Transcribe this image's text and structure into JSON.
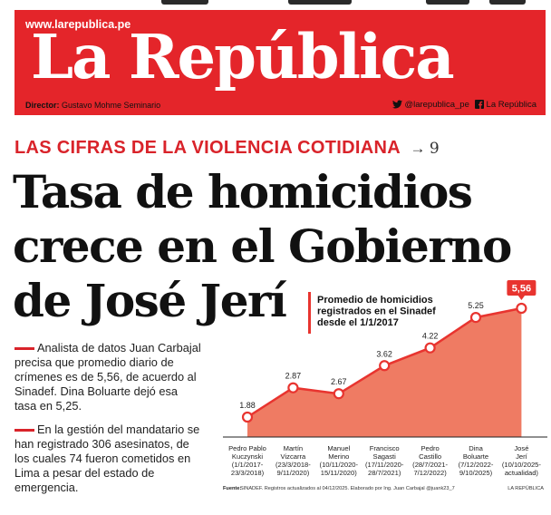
{
  "masthead": {
    "url": "www.larepublica.pe",
    "logo": "La República",
    "director_label": "Director:",
    "director_name": "Gustavo Mohme Seminario",
    "twitter": "@larepublica_pe",
    "facebook": "La República"
  },
  "kicker": {
    "text": "LAS CIFRAS DE LA VIOLENCIA COTIDIANA",
    "arrow": "→",
    "page": "9"
  },
  "headline": {
    "line1": "Tasa de homicidios",
    "line2": "crece en el Gobierno",
    "line3": "de José Jerí"
  },
  "bullets": [
    "Analista de datos Juan Carbajal precisa que promedio diario de crímenes es de 5,56, de acuerdo al Sinadef. Dina Boluarte dejó esa tasa en 5,25.",
    "En la gestión del mandatario se han registrado 306 asesinatos, de los cuales 74 fueron cometidos en Lima a pesar del estado de emergencia."
  ],
  "colors": {
    "brand_red": "#e4252a",
    "area_fill": "#ef7b63",
    "area_line": "#e8342f"
  },
  "chart_data": {
    "type": "area",
    "title": "Promedio de homicidios registrados en el Sinadef desde el 1/1/2017",
    "categories": [
      {
        "name": "Pedro Pablo Kuczynski",
        "dates": "(1/1/2017-23/3/2018)"
      },
      {
        "name": "Martín Vizcarra",
        "dates": "(23/3/2018-9/11/2020)"
      },
      {
        "name": "Manuel Merino",
        "dates": "(10/11/2020-15/11/2020)"
      },
      {
        "name": "Francisco Sagasti",
        "dates": "(17/11/2020-28/7/2021)"
      },
      {
        "name": "Pedro Castillo",
        "dates": "(28/7/2021-7/12/2022)"
      },
      {
        "name": "Dina Boluarte",
        "dates": "(7/12/2022-9/10/2025)"
      },
      {
        "name": "José Jerí",
        "dates": "(10/10/2025-actualidad)"
      }
    ],
    "values": [
      1.88,
      2.87,
      2.67,
      3.62,
      4.22,
      5.25,
      5.56
    ],
    "value_labels": [
      "1.88",
      "2.87",
      "2.67",
      "3.62",
      "4.22",
      "5.25",
      "5,56"
    ],
    "highlight_index": 6,
    "ylim": [
      0,
      6
    ],
    "source_label": "Fuente:",
    "source": "SINADEF. Registros actualizados al 04/12/2025. Elaborado por Ing. Juan Carbajal @juank23_7",
    "credit": "LA REPÚBLICA"
  }
}
